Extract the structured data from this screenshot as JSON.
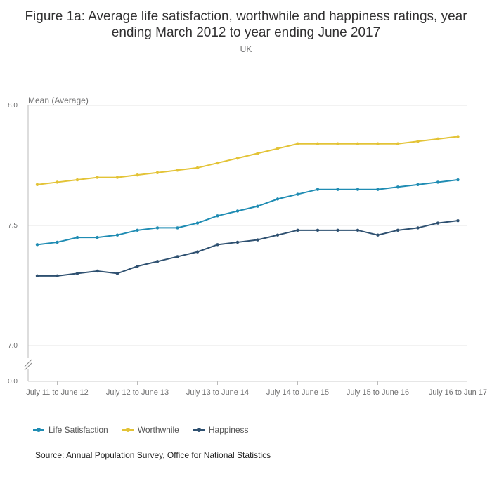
{
  "chart_data": {
    "type": "line",
    "title": "Figure 1a: Average life satisfaction, worthwhile and happiness ratings, year ending March 2012 to year ending June 2017",
    "subtitle": "UK",
    "ylabel": "Mean (Average)",
    "y_ticks": [
      "8.0",
      "7.5",
      "7.0",
      "0.0"
    ],
    "ylim": [
      7.0,
      8.0
    ],
    "axis_break": true,
    "x_ticks": [
      "July 11 to June 12",
      "July 12 to June 13",
      "July 13 to June 14",
      "July 14 to June 15",
      "July 15 to June 16",
      "July 16 to Jun 17"
    ],
    "x_tick_indices": [
      1,
      5,
      9,
      13,
      17,
      21
    ],
    "num_points": 22,
    "series": [
      {
        "name": "Life Satisfaction",
        "color": "#1f8cb3",
        "values": [
          7.42,
          7.43,
          7.45,
          7.45,
          7.46,
          7.48,
          7.49,
          7.49,
          7.51,
          7.54,
          7.56,
          7.58,
          7.61,
          7.63,
          7.65,
          7.65,
          7.65,
          7.65,
          7.66,
          7.67,
          7.68,
          7.69
        ]
      },
      {
        "name": "Worthwhile",
        "color": "#e3c336",
        "values": [
          7.67,
          7.68,
          7.69,
          7.7,
          7.7,
          7.71,
          7.72,
          7.73,
          7.74,
          7.76,
          7.78,
          7.8,
          7.82,
          7.84,
          7.84,
          7.84,
          7.84,
          7.84,
          7.84,
          7.85,
          7.86,
          7.87
        ]
      },
      {
        "name": "Happiness",
        "color": "#2e5070",
        "values": [
          7.29,
          7.29,
          7.3,
          7.31,
          7.3,
          7.33,
          7.35,
          7.37,
          7.39,
          7.42,
          7.43,
          7.44,
          7.46,
          7.48,
          7.48,
          7.48,
          7.48,
          7.46,
          7.48,
          7.49,
          7.51,
          7.52
        ]
      }
    ],
    "legend": [
      "Life Satisfaction",
      "Worthwhile",
      "Happiness"
    ],
    "source": "Source: Annual Population Survey, Office for National Statistics"
  }
}
